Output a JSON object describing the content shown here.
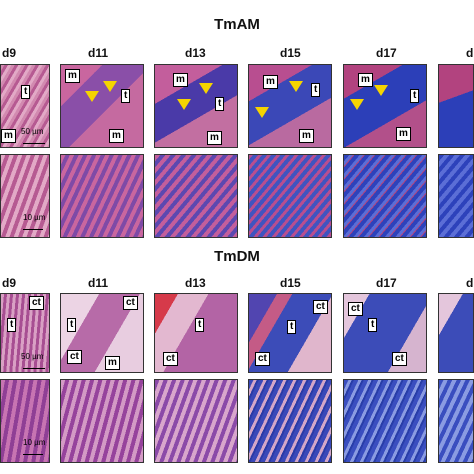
{
  "sections": [
    {
      "title": "TmAM",
      "days": [
        "d9",
        "d11",
        "d13",
        "d15",
        "d17",
        "d"
      ],
      "scale_low": "50 µm",
      "scale_high": "10 µm"
    },
    {
      "title": "TmDM",
      "days": [
        "d9",
        "d11",
        "d13",
        "d15",
        "d17",
        "d"
      ],
      "scale_low": "50 µm",
      "scale_high": "10 µm"
    }
  ],
  "labels": {
    "m": "m",
    "t": "t",
    "ct": "ct"
  }
}
